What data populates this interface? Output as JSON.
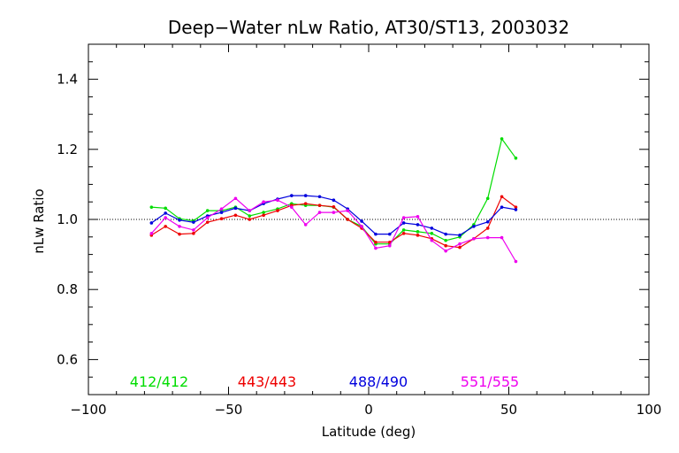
{
  "chart_data": {
    "type": "line",
    "title": "Deep−Water nLw Ratio, AT30/ST13, 2003032",
    "xlabel": "Latitude (deg)",
    "ylabel": "nLw Ratio",
    "xlim": [
      -100,
      100
    ],
    "ylim": [
      0.5,
      1.5
    ],
    "x_ticks": [
      -100,
      -50,
      0,
      50,
      100
    ],
    "x_tick_labels": [
      "−100",
      "−50",
      "0",
      "50",
      "100"
    ],
    "y_ticks": [
      0.6,
      0.8,
      1.0,
      1.2,
      1.4
    ],
    "y_tick_labels": [
      "0.6",
      "0.8",
      "1.0",
      "1.2",
      "1.4"
    ],
    "reference_line": 1.0,
    "grid": false,
    "legend_placement": "bottom inside plot",
    "series": [
      {
        "name": "412/412",
        "color": "#00dd00",
        "x": [
          -77.5,
          -72.5,
          -67.5,
          -62.5,
          -57.5,
          -52.5,
          -47.5,
          -42.5,
          -37.5,
          -32.5,
          -27.5,
          -22.5,
          -17.5,
          -12.5,
          -7.5,
          -2.5,
          2.5,
          7.5,
          12.5,
          17.5,
          22.5,
          27.5,
          32.5,
          37.5,
          42.5,
          47.5,
          52.5
        ],
        "y": [
          1.035,
          1.032,
          1.002,
          0.996,
          1.025,
          1.025,
          1.035,
          1.01,
          1.02,
          1.03,
          1.045,
          1.04,
          1.04,
          1.035,
          1.0,
          0.98,
          0.93,
          0.93,
          0.97,
          0.965,
          0.96,
          0.94,
          0.95,
          0.985,
          1.06,
          1.23,
          1.175
        ]
      },
      {
        "name": "443/443",
        "color": "#ee0000",
        "x": [
          -77.5,
          -72.5,
          -67.5,
          -62.5,
          -57.5,
          -52.5,
          -47.5,
          -42.5,
          -37.5,
          -32.5,
          -27.5,
          -22.5,
          -17.5,
          -12.5,
          -7.5,
          -2.5,
          2.5,
          7.5,
          12.5,
          17.5,
          22.5,
          27.5,
          32.5,
          37.5,
          42.5,
          47.5,
          52.5
        ],
        "y": [
          0.955,
          0.98,
          0.958,
          0.96,
          0.992,
          1.002,
          1.012,
          1.0,
          1.012,
          1.025,
          1.04,
          1.045,
          1.04,
          1.036,
          1.0,
          0.975,
          0.935,
          0.935,
          0.96,
          0.955,
          0.945,
          0.925,
          0.92,
          0.945,
          0.975,
          1.065,
          1.035
        ]
      },
      {
        "name": "488/490",
        "color": "#0000dd",
        "x": [
          -77.5,
          -72.5,
          -67.5,
          -62.5,
          -57.5,
          -52.5,
          -47.5,
          -42.5,
          -37.5,
          -32.5,
          -27.5,
          -22.5,
          -17.5,
          -12.5,
          -7.5,
          -2.5,
          2.5,
          7.5,
          12.5,
          17.5,
          22.5,
          27.5,
          32.5,
          37.5,
          42.5,
          47.5,
          52.5
        ],
        "y": [
          0.99,
          1.018,
          0.998,
          0.992,
          1.01,
          1.02,
          1.032,
          1.025,
          1.045,
          1.058,
          1.068,
          1.068,
          1.065,
          1.055,
          1.03,
          0.995,
          0.958,
          0.958,
          0.99,
          0.985,
          0.975,
          0.958,
          0.955,
          0.98,
          0.993,
          1.035,
          1.028
        ]
      },
      {
        "name": "551/555",
        "color": "#ee00ee",
        "x": [
          -77.5,
          -72.5,
          -67.5,
          -62.5,
          -57.5,
          -52.5,
          -47.5,
          -42.5,
          -37.5,
          -32.5,
          -27.5,
          -22.5,
          -17.5,
          -12.5,
          -7.5,
          -2.5,
          2.5,
          7.5,
          12.5,
          17.5,
          22.5,
          27.5,
          32.5,
          37.5,
          42.5,
          47.5,
          52.5
        ],
        "y": [
          0.96,
          1.005,
          0.98,
          0.97,
          1.005,
          1.03,
          1.06,
          1.025,
          1.05,
          1.055,
          1.035,
          0.985,
          1.02,
          1.02,
          1.025,
          0.98,
          0.918,
          0.925,
          1.005,
          1.008,
          0.94,
          0.91,
          0.93,
          0.945,
          0.948,
          0.948,
          0.88
        ]
      }
    ]
  }
}
